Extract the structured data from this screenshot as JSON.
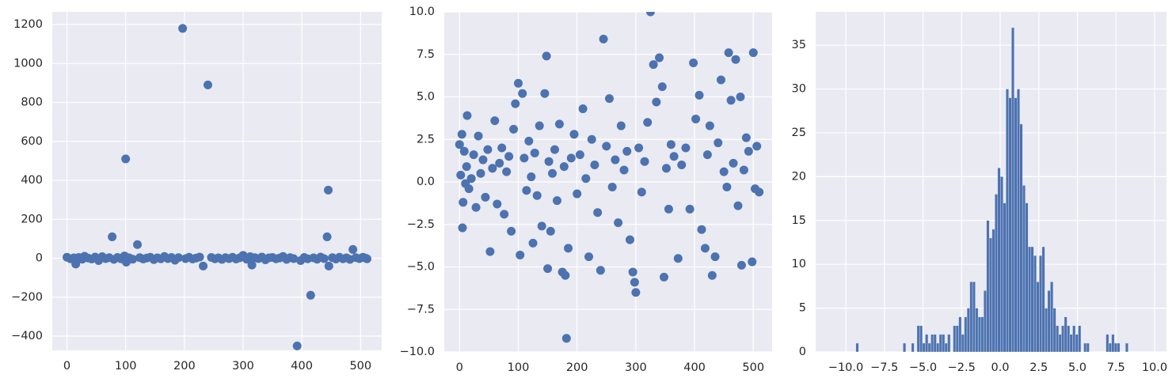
{
  "chart_data": [
    {
      "type": "scatter",
      "color": "#4c72b0",
      "grid": true,
      "xlim": [
        -25,
        536
      ],
      "ylim": [
        -473,
        1265
      ],
      "xticks": [
        0,
        100,
        200,
        300,
        400,
        500
      ],
      "yticks": [
        {
          "value": -400,
          "label": "−400"
        },
        {
          "value": -200,
          "label": "−200"
        },
        0,
        200,
        400,
        600,
        800,
        1000,
        1200
      ],
      "x": [
        0,
        6,
        12,
        15,
        20,
        26,
        30,
        36,
        42,
        48,
        54,
        60,
        66,
        72,
        77,
        80,
        86,
        92,
        98,
        100,
        101,
        106,
        112,
        120,
        124,
        130,
        136,
        142,
        148,
        154,
        160,
        166,
        172,
        178,
        184,
        190,
        197,
        202,
        208,
        214,
        220,
        226,
        232,
        240,
        246,
        252,
        258,
        264,
        270,
        276,
        282,
        288,
        294,
        300,
        306,
        312,
        315,
        320,
        326,
        332,
        338,
        344,
        350,
        356,
        362,
        368,
        374,
        380,
        386,
        392,
        398,
        404,
        410,
        415,
        420,
        426,
        432,
        438,
        443,
        445,
        446,
        452,
        458,
        464,
        470,
        476,
        482,
        487,
        492,
        498,
        504,
        508,
        511
      ],
      "values": [
        5,
        -3,
        2,
        -30,
        4,
        -5,
        10,
        1,
        -4,
        6,
        -12,
        8,
        -2,
        3,
        110,
        -6,
        4,
        -3,
        12,
        510,
        -20,
        2,
        -5,
        70,
        3,
        -4,
        1,
        5,
        -7,
        2,
        -3,
        9,
        -2,
        4,
        -10,
        3,
        1180,
        -2,
        5,
        -4,
        1,
        6,
        -40,
        890,
        4,
        -3,
        2,
        -6,
        3,
        -2,
        5,
        -4,
        2,
        15,
        -5,
        8,
        -35,
        3,
        -2,
        6,
        -8,
        2,
        4,
        -3,
        1,
        9,
        -6,
        3,
        -2,
        -450,
        -12,
        4,
        -3,
        -190,
        2,
        -5,
        6,
        -2,
        110,
        350,
        -40,
        3,
        -4,
        5,
        -3,
        2,
        -6,
        45,
        3,
        -2,
        5,
        1,
        -3
      ]
    },
    {
      "type": "scatter",
      "color": "#4c72b0",
      "grid": true,
      "xlim": [
        -26,
        532
      ],
      "ylim": [
        -10,
        10
      ],
      "xticks": [
        0,
        100,
        200,
        300,
        400,
        500
      ],
      "yticks": [
        {
          "value": -10,
          "label": "−10.0"
        },
        {
          "value": -7.5,
          "label": "−7.5"
        },
        {
          "value": -5,
          "label": "−5.0"
        },
        {
          "value": -2.5,
          "label": "−2.5"
        },
        {
          "value": 0,
          "label": "0.0"
        },
        2.5,
        {
          "value": 5,
          "label": "5.0"
        },
        7.5,
        {
          "value": 10,
          "label": "10.0"
        }
      ],
      "x": [
        0,
        2,
        4,
        5,
        6,
        8,
        10,
        12,
        13,
        16,
        20,
        24,
        28,
        32,
        36,
        40,
        44,
        48,
        52,
        56,
        60,
        64,
        68,
        72,
        76,
        80,
        84,
        88,
        92,
        95,
        100,
        103,
        107,
        110,
        114,
        118,
        122,
        125,
        128,
        132,
        136,
        140,
        145,
        148,
        150,
        152,
        155,
        158,
        162,
        166,
        170,
        175,
        178,
        180,
        182,
        185,
        190,
        195,
        200,
        205,
        210,
        215,
        220,
        225,
        230,
        235,
        240,
        245,
        250,
        255,
        260,
        265,
        270,
        275,
        280,
        285,
        290,
        295,
        298,
        300,
        305,
        310,
        315,
        320,
        325,
        330,
        335,
        340,
        345,
        348,
        352,
        356,
        360,
        365,
        372,
        378,
        385,
        392,
        398,
        402,
        408,
        412,
        418,
        422,
        426,
        430,
        435,
        440,
        445,
        450,
        455,
        458,
        462,
        466,
        470,
        474,
        478,
        480,
        484,
        488,
        492,
        498,
        500,
        503,
        506,
        510
      ],
      "values": [
        2.2,
        0.4,
        2.8,
        -2.7,
        -1.2,
        1.8,
        -0.1,
        0.9,
        3.9,
        -0.4,
        0.2,
        1.6,
        -1.5,
        2.7,
        0.5,
        1.3,
        -0.9,
        1.9,
        -4.1,
        0.8,
        3.6,
        -1.3,
        1.1,
        2.0,
        -1.9,
        0.6,
        1.5,
        -2.9,
        3.1,
        4.6,
        5.8,
        -4.3,
        5.2,
        1.4,
        -0.5,
        2.4,
        0.3,
        -3.6,
        1.7,
        -0.8,
        3.3,
        -2.6,
        5.2,
        7.4,
        -5.1,
        1.2,
        -2.9,
        0.5,
        1.9,
        -1.1,
        3.4,
        -5.3,
        0.9,
        -5.5,
        -9.2,
        -3.9,
        1.4,
        2.8,
        -0.7,
        1.6,
        4.3,
        0.2,
        -4.4,
        2.5,
        1.0,
        -1.8,
        -5.2,
        8.4,
        2.1,
        4.9,
        -0.3,
        1.3,
        -2.4,
        3.3,
        0.7,
        1.8,
        -3.4,
        -5.3,
        -5.9,
        -6.5,
        2.0,
        -0.6,
        1.2,
        3.5,
        10.0,
        6.9,
        4.7,
        7.3,
        5.6,
        -5.6,
        0.8,
        -1.6,
        2.2,
        1.5,
        -4.5,
        1.0,
        2.0,
        -1.6,
        7.0,
        3.7,
        5.1,
        -2.8,
        -3.9,
        1.6,
        3.3,
        -5.5,
        -4.4,
        2.3,
        6.0,
        0.6,
        -0.3,
        7.6,
        4.8,
        1.1,
        7.2,
        -1.4,
        5.0,
        -4.9,
        0.7,
        2.6,
        1.8,
        -4.7,
        7.6,
        -0.4,
        2.1,
        -0.6
      ]
    },
    {
      "type": "histogram",
      "color": "#4c72b0",
      "grid": true,
      "xlim": [
        -11.95,
        10.77
      ],
      "ylim": [
        0,
        38.8
      ],
      "xticks": [
        {
          "value": -10,
          "label": "−10.0"
        },
        {
          "value": -7.5,
          "label": "−7.5"
        },
        {
          "value": -5,
          "label": "−5.0"
        },
        {
          "value": -2.5,
          "label": "−2.5"
        },
        {
          "value": 0,
          "label": "0.0"
        },
        2.5,
        {
          "value": 5,
          "label": "5.0"
        },
        7.5,
        {
          "value": 10,
          "label": "10.0"
        }
      ],
      "yticks": [
        0,
        5,
        10,
        15,
        20,
        25,
        30,
        35
      ],
      "bins": [
        -9.35,
        -9.17,
        -8.99,
        -8.81,
        -8.63,
        -8.45,
        -8.27,
        -8.09,
        -7.91,
        -7.73,
        -7.55,
        -7.37,
        -7.19,
        -7.01,
        -6.83,
        -6.65,
        -6.47,
        -6.29,
        -6.11,
        -5.93,
        -5.75,
        -5.57,
        -5.39,
        -5.21,
        -5.03,
        -4.85,
        -4.67,
        -4.49,
        -4.31,
        -4.13,
        -3.95,
        -3.77,
        -3.59,
        -3.41,
        -3.23,
        -3.05,
        -2.87,
        -2.69,
        -2.51,
        -2.33,
        -2.15,
        -1.97,
        -1.79,
        -1.61,
        -1.43,
        -1.25,
        -1.07,
        -0.89,
        -0.71,
        -0.53,
        -0.35,
        -0.17,
        0.01,
        0.19,
        0.37,
        0.55,
        0.73,
        0.91,
        1.09,
        1.27,
        1.45,
        1.63,
        1.81,
        1.99,
        2.17,
        2.35,
        2.53,
        2.71,
        2.89,
        3.07,
        3.25,
        3.43,
        3.61,
        3.79,
        3.97,
        4.15,
        4.33,
        4.51,
        4.69,
        4.87,
        5.05,
        5.23,
        5.41,
        5.59,
        5.77,
        5.95,
        6.13,
        6.31,
        6.49,
        6.67,
        6.85,
        7.03,
        7.21,
        7.39,
        7.57,
        7.75,
        7.93,
        8.11,
        8.29,
        8.47,
        8.65
      ],
      "values": [
        1,
        0,
        0,
        0,
        0,
        0,
        0,
        0,
        0,
        0,
        0,
        0,
        0,
        0,
        0,
        0,
        0,
        1,
        0,
        0,
        1,
        0,
        3,
        3,
        1,
        2,
        1,
        2,
        2,
        1,
        2,
        2,
        1,
        2,
        0,
        3,
        3,
        4,
        2,
        4,
        5,
        8,
        8,
        5,
        4,
        4,
        7,
        15,
        13,
        14,
        18,
        21,
        20,
        17,
        30,
        29,
        37,
        29,
        30,
        26,
        19,
        17,
        12,
        12,
        11,
        8,
        11,
        12,
        5,
        7,
        8,
        5,
        3,
        2,
        3,
        4,
        3,
        2,
        3,
        2,
        3,
        0,
        1,
        1,
        0,
        0,
        0,
        0,
        0,
        0,
        2,
        1,
        2,
        1,
        1,
        0,
        0,
        1,
        0,
        0
      ]
    }
  ]
}
